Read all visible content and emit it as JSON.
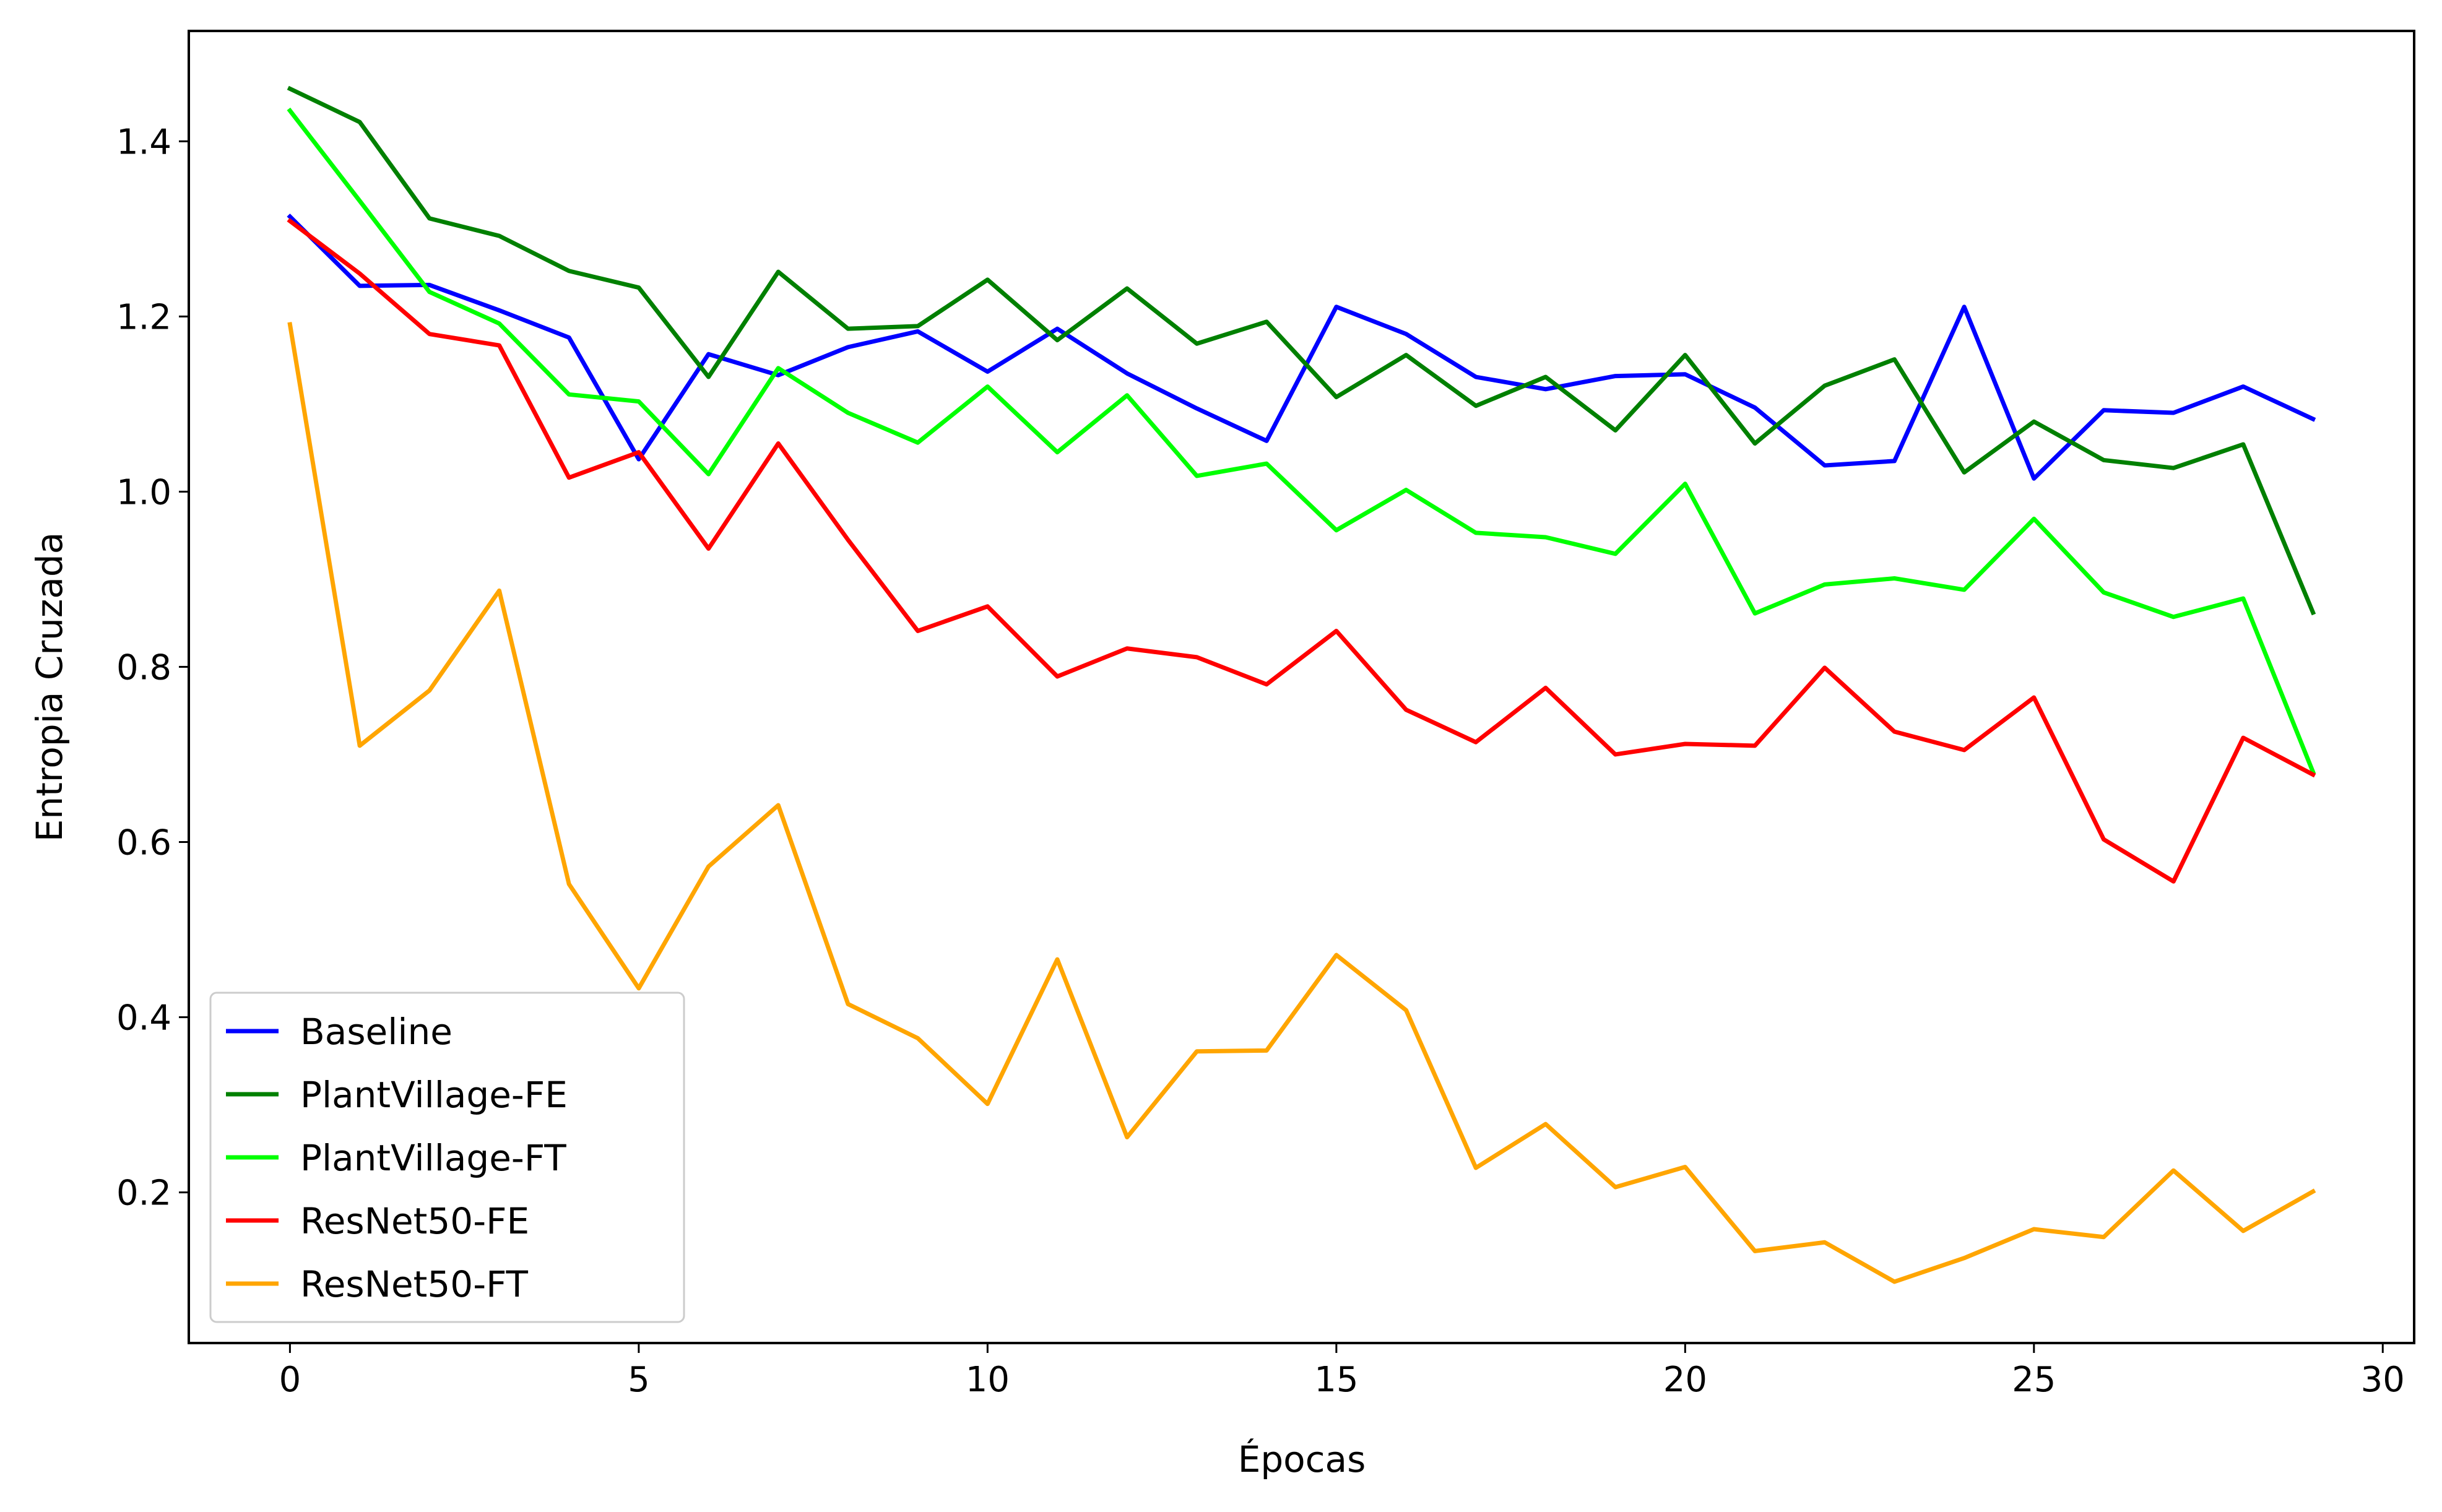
{
  "chart_data": {
    "type": "line",
    "title": "",
    "xlabel": "Épocas",
    "ylabel": "Entropia Cruzada",
    "xlim": [
      -1.45,
      30.45
    ],
    "ylim": [
      0.028,
      1.526
    ],
    "xticks": [
      0,
      5,
      10,
      15,
      20,
      25,
      30
    ],
    "yticks": [
      0.2,
      0.4,
      0.6,
      0.8,
      1.0,
      1.2,
      1.4
    ],
    "ytick_labels": [
      "0.2",
      "0.4",
      "0.6",
      "0.8",
      "1.0",
      "1.2",
      "1.4"
    ],
    "grid": false,
    "legend_position": "lower-left",
    "x": [
      0,
      1,
      2,
      3,
      4,
      5,
      6,
      7,
      8,
      9,
      10,
      11,
      12,
      13,
      14,
      15,
      16,
      17,
      18,
      19,
      20,
      21,
      22,
      23,
      24,
      25,
      26,
      27,
      28,
      29
    ],
    "series": [
      {
        "name": "Baseline",
        "color": "#0000ff",
        "values": [
          1.314,
          1.235,
          1.236,
          1.207,
          1.176,
          1.037,
          1.157,
          1.133,
          1.165,
          1.183,
          1.137,
          1.186,
          1.135,
          1.095,
          1.058,
          1.211,
          1.18,
          1.131,
          1.117,
          1.132,
          1.134,
          1.096,
          1.03,
          1.035,
          1.211,
          1.015,
          1.093,
          1.09,
          1.12,
          1.083
        ]
      },
      {
        "name": "PlantVillage-FE",
        "color": "#008000",
        "values": [
          1.46,
          1.422,
          1.312,
          1.292,
          1.252,
          1.233,
          1.131,
          1.251,
          1.186,
          1.189,
          1.242,
          1.173,
          1.232,
          1.169,
          1.194,
          1.108,
          1.156,
          1.098,
          1.131,
          1.07,
          1.156,
          1.055,
          1.121,
          1.151,
          1.022,
          1.08,
          1.036,
          1.027,
          1.054,
          0.862
        ]
      },
      {
        "name": "PlantVillage-FT",
        "color": "#00ff00",
        "values": [
          1.435,
          1.332,
          1.228,
          1.192,
          1.111,
          1.103,
          1.02,
          1.141,
          1.09,
          1.056,
          1.12,
          1.045,
          1.11,
          1.018,
          1.032,
          0.956,
          1.002,
          0.953,
          0.948,
          0.929,
          1.009,
          0.861,
          0.894,
          0.901,
          0.888,
          0.969,
          0.885,
          0.857,
          0.878,
          0.68
        ]
      },
      {
        "name": "ResNet50-FE",
        "color": "#ff0000",
        "values": [
          1.309,
          1.249,
          1.18,
          1.167,
          1.016,
          1.045,
          0.935,
          1.055,
          0.945,
          0.841,
          0.869,
          0.789,
          0.821,
          0.811,
          0.78,
          0.841,
          0.751,
          0.714,
          0.776,
          0.7,
          0.712,
          0.71,
          0.799,
          0.726,
          0.705,
          0.765,
          0.603,
          0.555,
          0.719,
          0.677
        ]
      },
      {
        "name": "ResNet50-FT",
        "color": "#ffa500",
        "values": [
          1.191,
          0.71,
          0.773,
          0.887,
          0.552,
          0.433,
          0.572,
          0.642,
          0.415,
          0.376,
          0.301,
          0.466,
          0.263,
          0.361,
          0.362,
          0.471,
          0.408,
          0.228,
          0.278,
          0.206,
          0.229,
          0.133,
          0.143,
          0.098,
          0.125,
          0.158,
          0.149,
          0.225,
          0.156,
          0.201
        ]
      }
    ]
  }
}
